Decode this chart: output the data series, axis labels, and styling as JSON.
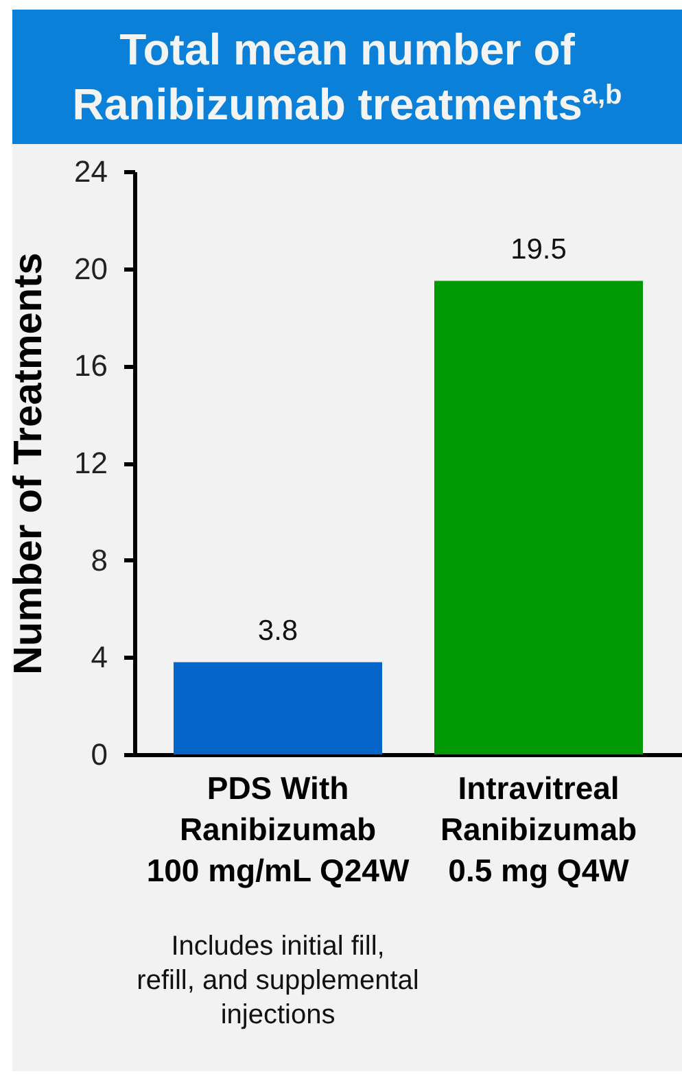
{
  "chart_data": {
    "type": "bar",
    "title": "Total mean number of Ranibizumab treatments$^{a,b}$",
    "ylabel": "Number of Treatments",
    "categories": [
      "PDS With\nRanibizumab\n100 mg/mL Q24W",
      "Intravitreal\nRanibizumab\n0.5 mg Q4W"
    ],
    "values": [
      3.8,
      19.5
    ],
    "colors": [
      "#0565c9",
      "#009803"
    ],
    "ylim": [
      0,
      24
    ],
    "yticks": [
      0,
      4,
      8,
      12,
      16,
      20,
      24
    ],
    "data_labels": true,
    "annotations": [
      "Includes initial fill,\nrefill, and supplemental\ninjections"
    ]
  }
}
